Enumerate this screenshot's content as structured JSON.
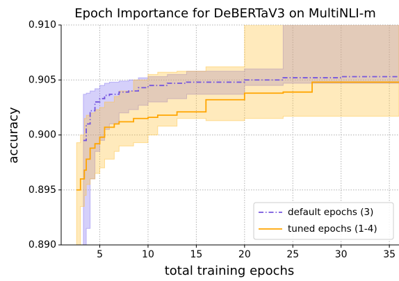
{
  "chart_data": {
    "type": "line",
    "title": "Epoch Importance for DeBERTaV3 on MultiNLI-m",
    "x_label": "total training epochs",
    "y_label": "accuracy",
    "xlim": [
      1,
      36
    ],
    "ylim": [
      0.89,
      0.91
    ],
    "xticks": [
      5,
      10,
      15,
      20,
      25,
      30,
      35
    ],
    "yticks": [
      {
        "value": 0.89,
        "label": "0.890"
      },
      {
        "value": 0.895,
        "label": "0.895"
      },
      {
        "value": 0.9,
        "label": "0.900"
      },
      {
        "value": 0.905,
        "label": "0.905"
      },
      {
        "value": 0.91,
        "label": "0.910"
      }
    ],
    "grid": true,
    "legend": "lower right",
    "series": [
      {
        "name": "default epochs (3)",
        "color": "#7556dd",
        "band_color": "#8878f0",
        "dash": "dashdot",
        "x": [
          3.3,
          3.6,
          4,
          4.5,
          5,
          5.5,
          6,
          7,
          8,
          9,
          10,
          12,
          14,
          20,
          24,
          30,
          36
        ],
        "values": [
          0.8995,
          0.901,
          0.9022,
          0.903,
          0.9033,
          0.9036,
          0.9037,
          0.9039,
          0.904,
          0.9043,
          0.9045,
          0.9047,
          0.9048,
          0.905,
          0.9052,
          0.9053,
          0.9053
        ],
        "upper": [
          0.9037,
          0.9038,
          0.904,
          0.9042,
          0.9045,
          0.9047,
          0.9048,
          0.9049,
          0.905,
          0.9052,
          0.9053,
          0.9055,
          0.9058,
          0.906,
          0.915,
          0.915,
          0.915
        ],
        "lower": [
          0.887,
          0.8885,
          0.8915,
          0.896,
          0.8985,
          0.8995,
          0.9005,
          0.901,
          0.902,
          0.9023,
          0.9027,
          0.903,
          0.9033,
          0.9037,
          0.9045,
          0.9047,
          0.9047
        ]
      },
      {
        "name": "tuned epochs (1-4)",
        "color": "#ffa500",
        "band_color": "#ffc440",
        "dash": "solid",
        "x": [
          2.6,
          3,
          3.4,
          3.6,
          4,
          4.5,
          5,
          5.5,
          6.5,
          7,
          8.5,
          10,
          11,
          13,
          16,
          20,
          24,
          27,
          36
        ],
        "values": [
          0.895,
          0.896,
          0.8968,
          0.8978,
          0.8988,
          0.8992,
          0.8998,
          0.9007,
          0.901,
          0.9012,
          0.9015,
          0.9016,
          0.9018,
          0.9021,
          0.9032,
          0.9038,
          0.9039,
          0.9048,
          0.9048
        ],
        "upper": [
          0.8993,
          0.9,
          0.9015,
          0.9018,
          0.902,
          0.9023,
          0.9025,
          0.903,
          0.9035,
          0.904,
          0.905,
          0.9055,
          0.9057,
          0.9058,
          0.9062,
          0.915,
          0.915,
          0.915,
          0.915
        ],
        "lower": [
          0.887,
          0.89,
          0.8935,
          0.8945,
          0.8955,
          0.896,
          0.8965,
          0.897,
          0.8978,
          0.8985,
          0.899,
          0.8993,
          0.9,
          0.9008,
          0.9015,
          0.9013,
          0.9015,
          0.9017,
          0.9017
        ]
      }
    ]
  }
}
